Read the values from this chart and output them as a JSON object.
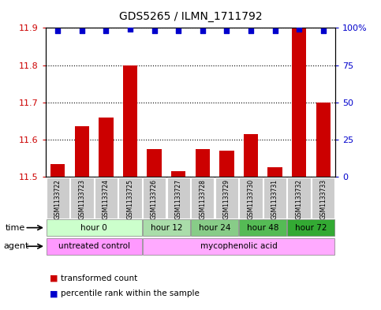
{
  "title": "GDS5265 / ILMN_1711792",
  "samples": [
    "GSM1133722",
    "GSM1133723",
    "GSM1133724",
    "GSM1133725",
    "GSM1133726",
    "GSM1133727",
    "GSM1133728",
    "GSM1133729",
    "GSM1133730",
    "GSM1133731",
    "GSM1133732",
    "GSM1133733"
  ],
  "bar_values": [
    11.535,
    11.635,
    11.66,
    11.8,
    11.575,
    11.515,
    11.575,
    11.57,
    11.615,
    11.525,
    11.9,
    11.7
  ],
  "percentile_values": [
    98,
    98,
    98,
    99,
    98,
    98,
    98,
    98,
    98,
    98,
    99,
    98
  ],
  "ylim_left": [
    11.5,
    11.9
  ],
  "ylim_right": [
    0,
    100
  ],
  "yticks_left": [
    11.5,
    11.6,
    11.7,
    11.8,
    11.9
  ],
  "yticks_right": [
    0,
    25,
    50,
    75,
    100
  ],
  "bar_color": "#cc0000",
  "dot_color": "#0000cc",
  "bar_width": 0.6,
  "time_groups": [
    {
      "label": "hour 0",
      "start": 0,
      "end": 3,
      "color": "#ccffcc"
    },
    {
      "label": "hour 12",
      "start": 4,
      "end": 5,
      "color": "#aaddaa"
    },
    {
      "label": "hour 24",
      "start": 6,
      "end": 7,
      "color": "#88cc88"
    },
    {
      "label": "hour 48",
      "start": 8,
      "end": 9,
      "color": "#55bb55"
    },
    {
      "label": "hour 72",
      "start": 10,
      "end": 11,
      "color": "#33aa33"
    }
  ],
  "agent_groups": [
    {
      "label": "untreated control",
      "start": 0,
      "end": 3,
      "color": "#ff99ff"
    },
    {
      "label": "mycophenolic acid",
      "start": 4,
      "end": 11,
      "color": "#ffaaff"
    }
  ],
  "sample_box_color": "#cccccc",
  "background_color": "#ffffff",
  "grid_color": "#000000"
}
